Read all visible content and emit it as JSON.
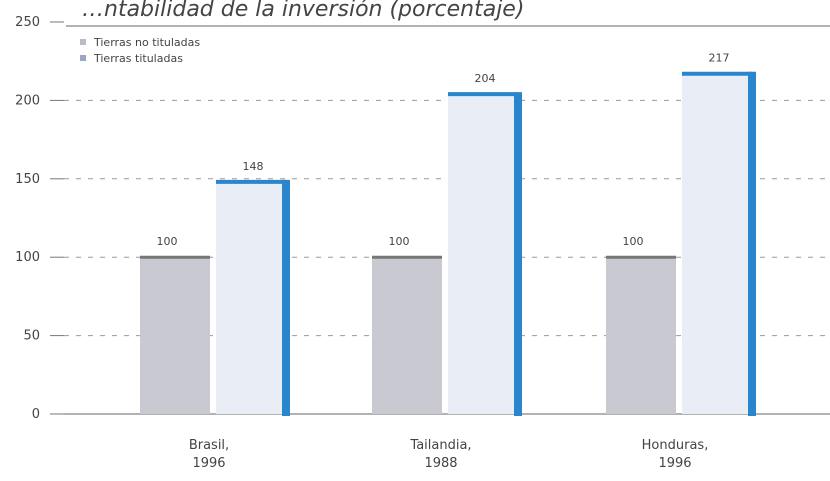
{
  "chart_data": {
    "type": "bar",
    "title": "…ntabilidad de la inversión (porcentaje)",
    "categories": [
      [
        "Brasil,",
        "1996"
      ],
      [
        "Tailandia,",
        "1988"
      ],
      [
        "Honduras,",
        "1996"
      ]
    ],
    "series": [
      {
        "name": "Tierras no tituladas",
        "values": [
          100,
          100,
          100
        ],
        "color": "#c9c9d2"
      },
      {
        "name": "Tierras tituladas",
        "values": [
          148,
          204,
          217
        ],
        "color": "#e9edf6",
        "accent": "#2a86cc"
      }
    ],
    "data_labels": [
      [
        "100",
        "148"
      ],
      [
        "100",
        "204"
      ],
      [
        "100",
        "217"
      ]
    ],
    "ylim": [
      0,
      250
    ],
    "yticks": [
      0,
      50,
      100,
      150,
      200,
      250
    ],
    "ytick_labels": [
      "0",
      "50",
      "100",
      "150",
      "200",
      "250"
    ],
    "grid": "dashed-horizontal",
    "legend_position": "top-left"
  }
}
